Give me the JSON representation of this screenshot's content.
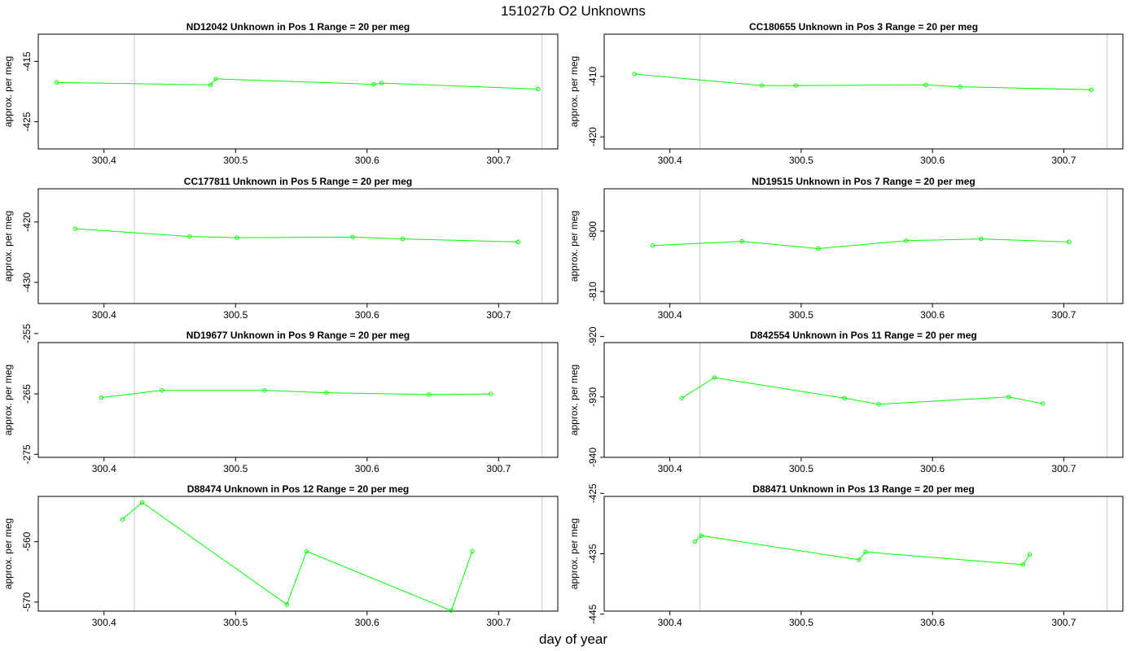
{
  "figure": {
    "title": "151027b  O2 Unknowns",
    "xlabel": "day of year"
  },
  "colors": {
    "series": "#00ff00",
    "frame": "#000000",
    "vline": "#c8c8c8",
    "text": "#000000"
  },
  "chart_data": [
    {
      "type": "line",
      "title": "ND12042    Unknown in Pos 1          Range = 20 per meg",
      "ylabel": "approx. per meg",
      "xlim": [
        300.35,
        300.745
      ],
      "ylim": [
        -429.5,
        -410.5
      ],
      "xticks": [
        300.4,
        300.5,
        300.6,
        300.7
      ],
      "xtick_labels": [
        "300.4",
        "300.5",
        "300.6",
        "300.7"
      ],
      "yticks": [
        -415,
        -425
      ],
      "ytick_labels": [
        "-415",
        "-425"
      ],
      "vlines": [
        300.423,
        300.733
      ],
      "x": [
        300.364,
        300.481,
        300.485,
        300.605,
        300.611,
        300.73
      ],
      "y": [
        -418.5,
        -418.9,
        -417.9,
        -418.8,
        -418.6,
        -419.6
      ]
    },
    {
      "type": "line",
      "title": "CC180655    Unknown in Pos 3          Range = 20 per meg",
      "ylabel": "approx. per meg",
      "xlim": [
        300.35,
        300.745
      ],
      "ylim": [
        -422.0,
        -403.0
      ],
      "xticks": [
        300.4,
        300.5,
        300.6,
        300.7
      ],
      "xtick_labels": [
        "300.4",
        "300.5",
        "300.6",
        "300.7"
      ],
      "yticks": [
        -410,
        -420
      ],
      "ytick_labels": [
        "-410",
        "-420"
      ],
      "vlines": [
        300.423,
        300.733
      ],
      "x": [
        300.373,
        300.47,
        300.496,
        300.595,
        300.621,
        300.721
      ],
      "y": [
        -409.6,
        -411.5,
        -411.5,
        -411.4,
        -411.7,
        -412.2
      ]
    },
    {
      "type": "line",
      "title": "CC177811    Unknown in Pos 5          Range = 20 per meg",
      "ylabel": "approx. per meg",
      "xlim": [
        300.35,
        300.745
      ],
      "ylim": [
        -433.5,
        -414.5
      ],
      "xticks": [
        300.4,
        300.5,
        300.6,
        300.7
      ],
      "xtick_labels": [
        "300.4",
        "300.5",
        "300.6",
        "300.7"
      ],
      "yticks": [
        -420,
        -430
      ],
      "ytick_labels": [
        "-420",
        "-430"
      ],
      "vlines": [
        300.423,
        300.733
      ],
      "x": [
        300.378,
        300.465,
        300.501,
        300.589,
        300.627,
        300.715
      ],
      "y": [
        -421.1,
        -422.4,
        -422.6,
        -422.5,
        -422.8,
        -423.3
      ]
    },
    {
      "type": "line",
      "title": "ND19515    Unknown in Pos 7          Range = 20 per meg",
      "ylabel": "approx. per meg",
      "xlim": [
        300.35,
        300.745
      ],
      "ylim": [
        -812.0,
        -793.0
      ],
      "xticks": [
        300.4,
        300.5,
        300.6,
        300.7
      ],
      "xtick_labels": [
        "300.4",
        "300.5",
        "300.6",
        "300.7"
      ],
      "yticks": [
        -800,
        -810
      ],
      "ytick_labels": [
        "-800",
        "-810"
      ],
      "vlines": [
        300.423,
        300.733
      ],
      "x": [
        300.387,
        300.455,
        300.513,
        300.58,
        300.637,
        300.704
      ],
      "y": [
        -802.4,
        -801.7,
        -802.9,
        -801.6,
        -801.3,
        -801.8
      ]
    },
    {
      "type": "line",
      "title": "ND19677    Unknown in Pos 9          Range = 20 per meg",
      "ylabel": "approx. per meg",
      "xlim": [
        300.35,
        300.745
      ],
      "ylim": [
        -275.5,
        -256.5
      ],
      "xticks": [
        300.4,
        300.5,
        300.6,
        300.7
      ],
      "xtick_labels": [
        "300.4",
        "300.5",
        "300.6",
        "300.7"
      ],
      "yticks": [
        -255,
        -265,
        -275
      ],
      "ytick_labels": [
        "-255",
        "-265",
        "-275"
      ],
      "vlines": [
        300.423,
        300.733
      ],
      "x": [
        300.398,
        300.444,
        300.522,
        300.569,
        300.647,
        300.694
      ],
      "y": [
        -265.6,
        -264.4,
        -264.4,
        -264.8,
        -265.1,
        -265.0
      ]
    },
    {
      "type": "line",
      "title": "D842554    Unknown in Pos 11          Range = 20 per meg",
      "ylabel": "approx. per meg",
      "xlim": [
        300.35,
        300.745
      ],
      "ylim": [
        -940.0,
        -921.0
      ],
      "xticks": [
        300.4,
        300.5,
        300.6,
        300.7
      ],
      "xtick_labels": [
        "300.4",
        "300.5",
        "300.6",
        "300.7"
      ],
      "yticks": [
        -920,
        -930,
        -940
      ],
      "ytick_labels": [
        "-920",
        "-930",
        "-940"
      ],
      "vlines": [
        300.423,
        300.733
      ],
      "x": [
        300.409,
        300.434,
        300.533,
        300.559,
        300.658,
        300.684
      ],
      "y": [
        -930.2,
        -926.8,
        -930.2,
        -931.2,
        -930.0,
        -931.1
      ]
    },
    {
      "type": "line",
      "title": "D88474    Unknown in Pos 12          Range = 20 per meg",
      "ylabel": "approx. per meg",
      "xlim": [
        300.35,
        300.745
      ],
      "ylim": [
        -571.5,
        -552.5
      ],
      "xticks": [
        300.4,
        300.5,
        300.6,
        300.7
      ],
      "xtick_labels": [
        "300.4",
        "300.5",
        "300.6",
        "300.7"
      ],
      "yticks": [
        -560,
        -570
      ],
      "ytick_labels": [
        "-560",
        "-570"
      ],
      "vlines": [
        300.423,
        300.733
      ],
      "x": [
        300.414,
        300.429,
        300.539,
        300.554,
        300.664,
        300.68
      ],
      "y": [
        -556.3,
        -553.5,
        -570.4,
        -561.6,
        -571.4,
        -561.6
      ]
    },
    {
      "type": "line",
      "title": "D88471    Unknown in Pos 13          Range = 20 per meg",
      "ylabel": "approx. per meg",
      "xlim": [
        300.35,
        300.745
      ],
      "ylim": [
        -444.5,
        -425.5
      ],
      "xticks": [
        300.4,
        300.5,
        300.6,
        300.7
      ],
      "xtick_labels": [
        "300.4",
        "300.5",
        "300.6",
        "300.7"
      ],
      "yticks": [
        -425,
        -435,
        -445
      ],
      "ytick_labels": [
        "-425",
        "-435",
        "-445"
      ],
      "vlines": [
        300.423,
        300.733
      ],
      "x": [
        300.419,
        300.424,
        300.544,
        300.549,
        300.669,
        300.674
      ],
      "y": [
        -433.0,
        -432.0,
        -436.0,
        -434.7,
        -436.8,
        -435.1
      ]
    }
  ]
}
